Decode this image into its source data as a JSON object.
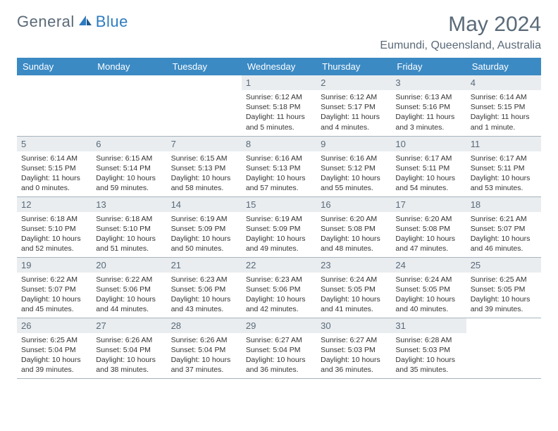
{
  "logo": {
    "part1": "General",
    "part2": "Blue"
  },
  "title": "May 2024",
  "location": "Eumundi, Queensland, Australia",
  "colors": {
    "header_band": "#3b8ac4",
    "header_text": "#ffffff",
    "daynum_bg": "#e9edf0",
    "text_muted": "#5a6a78",
    "border": "#a8b4bd",
    "accent": "#2e7bc0",
    "background": "#ffffff"
  },
  "fonts": {
    "body_pt": 10.5,
    "title_pt": 30,
    "location_pt": 16,
    "header_pt": 13
  },
  "weekdays": [
    "Sunday",
    "Monday",
    "Tuesday",
    "Wednesday",
    "Thursday",
    "Friday",
    "Saturday"
  ],
  "grid": {
    "cols": 7,
    "rows": 5,
    "start_weekday_index": 3,
    "days_in_month": 31
  },
  "days": {
    "1": {
      "sunrise": "6:12 AM",
      "sunset": "5:18 PM",
      "daylight": "11 hours and 5 minutes."
    },
    "2": {
      "sunrise": "6:12 AM",
      "sunset": "5:17 PM",
      "daylight": "11 hours and 4 minutes."
    },
    "3": {
      "sunrise": "6:13 AM",
      "sunset": "5:16 PM",
      "daylight": "11 hours and 3 minutes."
    },
    "4": {
      "sunrise": "6:14 AM",
      "sunset": "5:15 PM",
      "daylight": "11 hours and 1 minute."
    },
    "5": {
      "sunrise": "6:14 AM",
      "sunset": "5:15 PM",
      "daylight": "11 hours and 0 minutes."
    },
    "6": {
      "sunrise": "6:15 AM",
      "sunset": "5:14 PM",
      "daylight": "10 hours and 59 minutes."
    },
    "7": {
      "sunrise": "6:15 AM",
      "sunset": "5:13 PM",
      "daylight": "10 hours and 58 minutes."
    },
    "8": {
      "sunrise": "6:16 AM",
      "sunset": "5:13 PM",
      "daylight": "10 hours and 57 minutes."
    },
    "9": {
      "sunrise": "6:16 AM",
      "sunset": "5:12 PM",
      "daylight": "10 hours and 55 minutes."
    },
    "10": {
      "sunrise": "6:17 AM",
      "sunset": "5:11 PM",
      "daylight": "10 hours and 54 minutes."
    },
    "11": {
      "sunrise": "6:17 AM",
      "sunset": "5:11 PM",
      "daylight": "10 hours and 53 minutes."
    },
    "12": {
      "sunrise": "6:18 AM",
      "sunset": "5:10 PM",
      "daylight": "10 hours and 52 minutes."
    },
    "13": {
      "sunrise": "6:18 AM",
      "sunset": "5:10 PM",
      "daylight": "10 hours and 51 minutes."
    },
    "14": {
      "sunrise": "6:19 AM",
      "sunset": "5:09 PM",
      "daylight": "10 hours and 50 minutes."
    },
    "15": {
      "sunrise": "6:19 AM",
      "sunset": "5:09 PM",
      "daylight": "10 hours and 49 minutes."
    },
    "16": {
      "sunrise": "6:20 AM",
      "sunset": "5:08 PM",
      "daylight": "10 hours and 48 minutes."
    },
    "17": {
      "sunrise": "6:20 AM",
      "sunset": "5:08 PM",
      "daylight": "10 hours and 47 minutes."
    },
    "18": {
      "sunrise": "6:21 AM",
      "sunset": "5:07 PM",
      "daylight": "10 hours and 46 minutes."
    },
    "19": {
      "sunrise": "6:22 AM",
      "sunset": "5:07 PM",
      "daylight": "10 hours and 45 minutes."
    },
    "20": {
      "sunrise": "6:22 AM",
      "sunset": "5:06 PM",
      "daylight": "10 hours and 44 minutes."
    },
    "21": {
      "sunrise": "6:23 AM",
      "sunset": "5:06 PM",
      "daylight": "10 hours and 43 minutes."
    },
    "22": {
      "sunrise": "6:23 AM",
      "sunset": "5:06 PM",
      "daylight": "10 hours and 42 minutes."
    },
    "23": {
      "sunrise": "6:24 AM",
      "sunset": "5:05 PM",
      "daylight": "10 hours and 41 minutes."
    },
    "24": {
      "sunrise": "6:24 AM",
      "sunset": "5:05 PM",
      "daylight": "10 hours and 40 minutes."
    },
    "25": {
      "sunrise": "6:25 AM",
      "sunset": "5:05 PM",
      "daylight": "10 hours and 39 minutes."
    },
    "26": {
      "sunrise": "6:25 AM",
      "sunset": "5:04 PM",
      "daylight": "10 hours and 39 minutes."
    },
    "27": {
      "sunrise": "6:26 AM",
      "sunset": "5:04 PM",
      "daylight": "10 hours and 38 minutes."
    },
    "28": {
      "sunrise": "6:26 AM",
      "sunset": "5:04 PM",
      "daylight": "10 hours and 37 minutes."
    },
    "29": {
      "sunrise": "6:27 AM",
      "sunset": "5:04 PM",
      "daylight": "10 hours and 36 minutes."
    },
    "30": {
      "sunrise": "6:27 AM",
      "sunset": "5:03 PM",
      "daylight": "10 hours and 36 minutes."
    },
    "31": {
      "sunrise": "6:28 AM",
      "sunset": "5:03 PM",
      "daylight": "10 hours and 35 minutes."
    }
  },
  "labels": {
    "sunrise": "Sunrise: ",
    "sunset": "Sunset: ",
    "daylight": "Daylight: "
  }
}
